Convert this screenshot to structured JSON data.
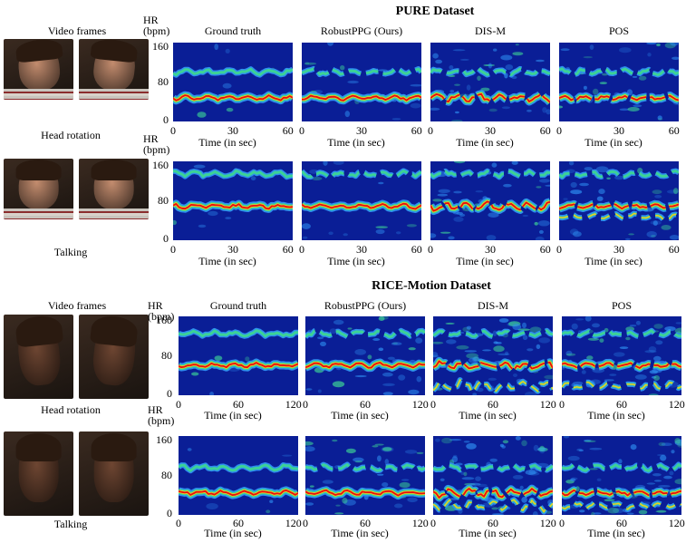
{
  "sections": [
    {
      "title": "PURE Dataset",
      "video_label": "Video frames",
      "columns": [
        "Ground truth",
        "RobustPPG (Ours)",
        "DIS-M",
        "POS"
      ],
      "rows": [
        {
          "condition": "Head rotation",
          "hr_label": "HR",
          "hr_unit": "(bpm)",
          "y_ticks": [
            "160",
            "80",
            "0"
          ],
          "x_ticks": [
            "0",
            "30",
            "60"
          ],
          "x_label": "Time (in sec)"
        },
        {
          "condition": "Talking",
          "hr_label": "HR",
          "hr_unit": "(bpm)",
          "y_ticks": [
            "160",
            "80",
            "0"
          ],
          "x_ticks": [
            "0",
            "30",
            "60"
          ],
          "x_label": "Time (in sec)"
        }
      ]
    },
    {
      "title": "RICE-Motion Dataset",
      "video_label": "Video frames",
      "columns": [
        "Ground truth",
        "RobustPPG (Ours)",
        "DIS-M",
        "POS"
      ],
      "rows": [
        {
          "condition": "Head rotation",
          "hr_label": "HR",
          "hr_unit": "(bpm)",
          "y_ticks": [
            "160",
            "80",
            "0"
          ],
          "x_ticks": [
            "0",
            "60",
            "120"
          ],
          "x_label": "Time (in sec)"
        },
        {
          "condition": "Talking",
          "hr_label": "HR",
          "hr_unit": "(bpm)",
          "y_ticks": [
            "160",
            "80",
            "0"
          ],
          "x_ticks": [
            "0",
            "60",
            "120"
          ],
          "x_label": "Time (in sec)"
        }
      ]
    }
  ],
  "colors": {
    "heatmap_background": "#0a1e96",
    "ridge_peak": "#e60f0f",
    "ridge_high": "#f5c81e",
    "ridge_mid": "#3cd296",
    "ridge_low": "#2d8cf0",
    "pure_skin": "#c38c6e",
    "rice_skin": "#6e4632"
  }
}
